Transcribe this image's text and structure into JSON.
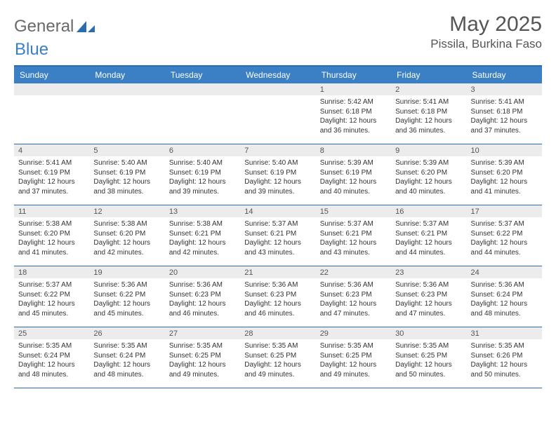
{
  "logo": {
    "text1": "General",
    "text2": "Blue"
  },
  "title": "May 2025",
  "location": "Pissila, Burkina Faso",
  "colors": {
    "header_bg": "#3b7fc4",
    "header_border": "#2b6caf",
    "daynum_bg": "#ececec",
    "text": "#333333",
    "title_text": "#555555"
  },
  "day_names": [
    "Sunday",
    "Monday",
    "Tuesday",
    "Wednesday",
    "Thursday",
    "Friday",
    "Saturday"
  ],
  "weeks": [
    [
      {
        "n": "",
        "sr": "",
        "ss": "",
        "dl": ""
      },
      {
        "n": "",
        "sr": "",
        "ss": "",
        "dl": ""
      },
      {
        "n": "",
        "sr": "",
        "ss": "",
        "dl": ""
      },
      {
        "n": "",
        "sr": "",
        "ss": "",
        "dl": ""
      },
      {
        "n": "1",
        "sr": "5:42 AM",
        "ss": "6:18 PM",
        "dl": "12 hours and 36 minutes."
      },
      {
        "n": "2",
        "sr": "5:41 AM",
        "ss": "6:18 PM",
        "dl": "12 hours and 36 minutes."
      },
      {
        "n": "3",
        "sr": "5:41 AM",
        "ss": "6:18 PM",
        "dl": "12 hours and 37 minutes."
      }
    ],
    [
      {
        "n": "4",
        "sr": "5:41 AM",
        "ss": "6:19 PM",
        "dl": "12 hours and 37 minutes."
      },
      {
        "n": "5",
        "sr": "5:40 AM",
        "ss": "6:19 PM",
        "dl": "12 hours and 38 minutes."
      },
      {
        "n": "6",
        "sr": "5:40 AM",
        "ss": "6:19 PM",
        "dl": "12 hours and 39 minutes."
      },
      {
        "n": "7",
        "sr": "5:40 AM",
        "ss": "6:19 PM",
        "dl": "12 hours and 39 minutes."
      },
      {
        "n": "8",
        "sr": "5:39 AM",
        "ss": "6:19 PM",
        "dl": "12 hours and 40 minutes."
      },
      {
        "n": "9",
        "sr": "5:39 AM",
        "ss": "6:20 PM",
        "dl": "12 hours and 40 minutes."
      },
      {
        "n": "10",
        "sr": "5:39 AM",
        "ss": "6:20 PM",
        "dl": "12 hours and 41 minutes."
      }
    ],
    [
      {
        "n": "11",
        "sr": "5:38 AM",
        "ss": "6:20 PM",
        "dl": "12 hours and 41 minutes."
      },
      {
        "n": "12",
        "sr": "5:38 AM",
        "ss": "6:20 PM",
        "dl": "12 hours and 42 minutes."
      },
      {
        "n": "13",
        "sr": "5:38 AM",
        "ss": "6:21 PM",
        "dl": "12 hours and 42 minutes."
      },
      {
        "n": "14",
        "sr": "5:37 AM",
        "ss": "6:21 PM",
        "dl": "12 hours and 43 minutes."
      },
      {
        "n": "15",
        "sr": "5:37 AM",
        "ss": "6:21 PM",
        "dl": "12 hours and 43 minutes."
      },
      {
        "n": "16",
        "sr": "5:37 AM",
        "ss": "6:21 PM",
        "dl": "12 hours and 44 minutes."
      },
      {
        "n": "17",
        "sr": "5:37 AM",
        "ss": "6:22 PM",
        "dl": "12 hours and 44 minutes."
      }
    ],
    [
      {
        "n": "18",
        "sr": "5:37 AM",
        "ss": "6:22 PM",
        "dl": "12 hours and 45 minutes."
      },
      {
        "n": "19",
        "sr": "5:36 AM",
        "ss": "6:22 PM",
        "dl": "12 hours and 45 minutes."
      },
      {
        "n": "20",
        "sr": "5:36 AM",
        "ss": "6:23 PM",
        "dl": "12 hours and 46 minutes."
      },
      {
        "n": "21",
        "sr": "5:36 AM",
        "ss": "6:23 PM",
        "dl": "12 hours and 46 minutes."
      },
      {
        "n": "22",
        "sr": "5:36 AM",
        "ss": "6:23 PM",
        "dl": "12 hours and 47 minutes."
      },
      {
        "n": "23",
        "sr": "5:36 AM",
        "ss": "6:23 PM",
        "dl": "12 hours and 47 minutes."
      },
      {
        "n": "24",
        "sr": "5:36 AM",
        "ss": "6:24 PM",
        "dl": "12 hours and 48 minutes."
      }
    ],
    [
      {
        "n": "25",
        "sr": "5:35 AM",
        "ss": "6:24 PM",
        "dl": "12 hours and 48 minutes."
      },
      {
        "n": "26",
        "sr": "5:35 AM",
        "ss": "6:24 PM",
        "dl": "12 hours and 48 minutes."
      },
      {
        "n": "27",
        "sr": "5:35 AM",
        "ss": "6:25 PM",
        "dl": "12 hours and 49 minutes."
      },
      {
        "n": "28",
        "sr": "5:35 AM",
        "ss": "6:25 PM",
        "dl": "12 hours and 49 minutes."
      },
      {
        "n": "29",
        "sr": "5:35 AM",
        "ss": "6:25 PM",
        "dl": "12 hours and 49 minutes."
      },
      {
        "n": "30",
        "sr": "5:35 AM",
        "ss": "6:25 PM",
        "dl": "12 hours and 50 minutes."
      },
      {
        "n": "31",
        "sr": "5:35 AM",
        "ss": "6:26 PM",
        "dl": "12 hours and 50 minutes."
      }
    ]
  ],
  "labels": {
    "sunrise": "Sunrise:",
    "sunset": "Sunset:",
    "daylight": "Daylight:"
  }
}
